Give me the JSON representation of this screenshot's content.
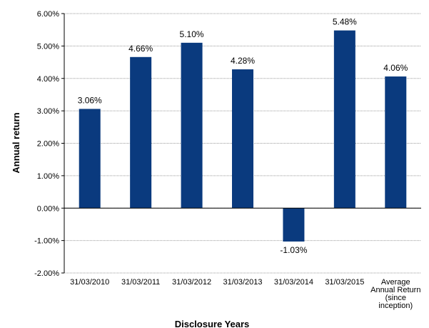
{
  "chart_data": {
    "type": "bar",
    "categories": [
      [
        "31/03/2010"
      ],
      [
        "31/03/2011"
      ],
      [
        "31/03/2012"
      ],
      [
        "31/03/2013"
      ],
      [
        "31/03/2014"
      ],
      [
        "31/03/2015"
      ],
      [
        "Average",
        "Annual Return",
        "(since",
        "inception)"
      ]
    ],
    "values": [
      3.06,
      4.66,
      5.1,
      4.28,
      -1.03,
      5.48,
      4.06
    ],
    "data_labels": [
      "3.06%",
      "4.66%",
      "5.10%",
      "4.28%",
      "-1.03%",
      "5.48%",
      "4.06%"
    ],
    "xlabel": "Disclosure Years",
    "ylabel": "Annual return",
    "ylim": [
      -2,
      6
    ],
    "y_ticks": [
      "-2.00%",
      "-1.00%",
      "0.00%",
      "1.00%",
      "2.00%",
      "3.00%",
      "4.00%",
      "5.00%",
      "6.00%"
    ],
    "grid": true,
    "bar_color": "#0a3a7e",
    "grid_color": "#9a9a9a"
  }
}
